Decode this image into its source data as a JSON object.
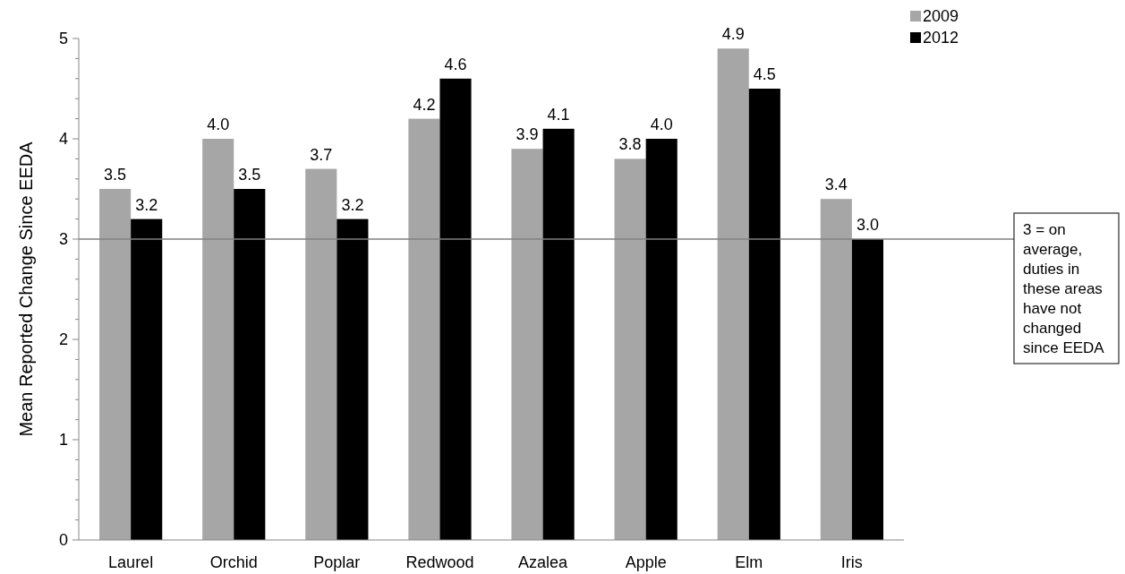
{
  "chart_data": {
    "type": "bar",
    "ylabel": "Mean Reported Change Since EEDA",
    "categories": [
      "Laurel",
      "Orchid",
      "Poplar",
      "Redwood",
      "Azalea",
      "Apple",
      "Elm",
      "Iris"
    ],
    "series": [
      {
        "name": "2009",
        "color": "#a6a6a6",
        "values": [
          3.5,
          4.0,
          3.7,
          4.2,
          3.9,
          3.8,
          4.9,
          3.4
        ],
        "value_labels": [
          "3.5",
          "4.0",
          "3.7",
          "4.2",
          "3.9",
          "3.8",
          "4.9",
          "3.4"
        ]
      },
      {
        "name": "2012",
        "color": "#000000",
        "values": [
          3.2,
          3.5,
          3.2,
          4.6,
          4.1,
          4.0,
          4.5,
          3.0
        ],
        "value_labels": [
          "3.2",
          "3.5",
          "3.2",
          "4.6",
          "4.1",
          "4.0",
          "4.5",
          "3.0"
        ]
      }
    ],
    "ylim": [
      0,
      5
    ],
    "yticks": [
      0,
      {
        "value": 0.2,
        "label": null
      },
      {
        "value": 0.4,
        "label": null
      },
      {
        "value": 0.6,
        "label": null
      },
      {
        "value": 0.8,
        "label": null
      },
      1,
      {
        "value": 1.2,
        "label": null
      },
      {
        "value": 1.4,
        "label": null
      },
      {
        "value": 1.6,
        "label": null
      },
      {
        "value": 1.8,
        "label": null
      },
      2,
      {
        "value": 2.2,
        "label": null
      },
      {
        "value": 2.4,
        "label": null
      },
      {
        "value": 2.6,
        "label": null
      },
      {
        "value": 2.8,
        "label": null
      },
      3,
      {
        "value": 3.2,
        "label": null
      },
      {
        "value": 3.4,
        "label": null
      },
      {
        "value": 3.6,
        "label": null
      },
      {
        "value": 3.8,
        "label": null
      },
      4,
      {
        "value": 4.2,
        "label": null
      },
      {
        "value": 4.4,
        "label": null
      },
      {
        "value": 4.6,
        "label": null
      },
      {
        "value": 4.8,
        "label": null
      },
      5
    ],
    "ref_lines": [
      {
        "axis": "y",
        "value": 3,
        "label": "3 = on average, duties in these areas have not changed since EEDA",
        "color": "#808080"
      }
    ],
    "legend": "top right",
    "grid": false
  }
}
